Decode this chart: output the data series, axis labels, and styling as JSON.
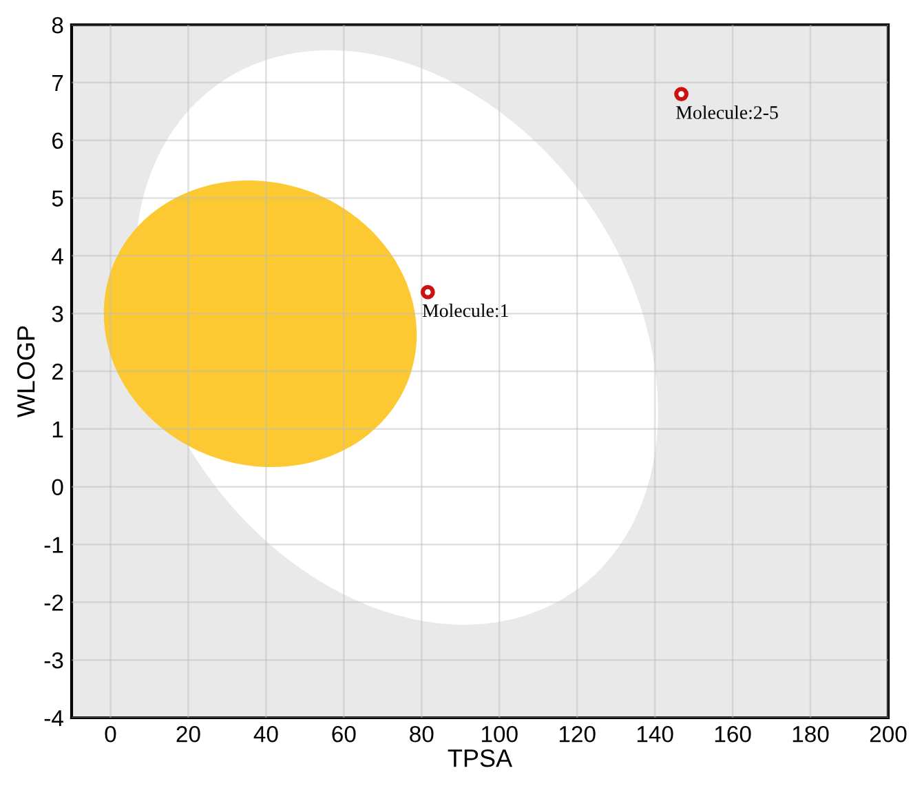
{
  "chart_data": {
    "type": "scatter",
    "xlabel": "TPSA",
    "ylabel": "WLOGP",
    "x": [
      81.6,
      146.8
    ],
    "values": [
      3.37,
      6.8
    ],
    "color": "#cc1111",
    "marker": "circle",
    "xlim": [
      -10,
      200
    ],
    "xticks": [
      0,
      20,
      40,
      60,
      80,
      100,
      120,
      140,
      160,
      180,
      200
    ],
    "ylim": [
      -4,
      8
    ],
    "yticks": [
      -4,
      -3,
      -2,
      -1,
      0,
      1,
      2,
      3,
      4,
      5,
      6,
      7,
      8
    ],
    "grid": true,
    "annotations": [
      {
        "text": "Molecule:1",
        "x": 81.6,
        "y": 3.37
      },
      {
        "text": "Molecule:2-5",
        "x": 146.8,
        "y": 6.8
      }
    ]
  }
}
